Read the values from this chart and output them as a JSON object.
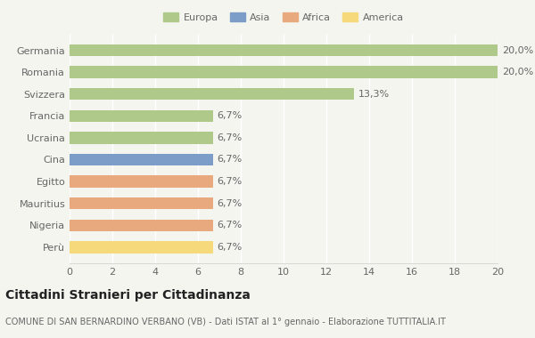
{
  "categories": [
    "Germania",
    "Romania",
    "Svizzera",
    "Francia",
    "Ucraina",
    "Cina",
    "Egitto",
    "Mauritius",
    "Nigeria",
    "Perù"
  ],
  "values": [
    20.0,
    20.0,
    13.3,
    6.7,
    6.7,
    6.7,
    6.7,
    6.7,
    6.7,
    6.7
  ],
  "labels": [
    "20,0%",
    "20,0%",
    "13,3%",
    "6,7%",
    "6,7%",
    "6,7%",
    "6,7%",
    "6,7%",
    "6,7%",
    "6,7%"
  ],
  "colors": [
    "#aec98a",
    "#aec98a",
    "#aec98a",
    "#aec98a",
    "#aec98a",
    "#7b9dc7",
    "#e8a97e",
    "#e8a97e",
    "#e8a97e",
    "#f5d97a"
  ],
  "legend": [
    {
      "label": "Europa",
      "color": "#aec98a"
    },
    {
      "label": "Asia",
      "color": "#7b9dc7"
    },
    {
      "label": "Africa",
      "color": "#e8a97e"
    },
    {
      "label": "America",
      "color": "#f5d97a"
    }
  ],
  "xlim": [
    0,
    20
  ],
  "xticks": [
    0,
    2,
    4,
    6,
    8,
    10,
    12,
    14,
    16,
    18,
    20
  ],
  "title": "Cittadini Stranieri per Cittadinanza",
  "subtitle": "COMUNE DI SAN BERNARDINO VERBANO (VB) - Dati ISTAT al 1° gennaio - Elaborazione TUTTITALIA.IT",
  "background_color": "#f5f5f0",
  "grid_color": "#ffffff",
  "label_fontsize": 8,
  "tick_fontsize": 8,
  "title_fontsize": 10,
  "subtitle_fontsize": 7,
  "bar_height": 0.55
}
